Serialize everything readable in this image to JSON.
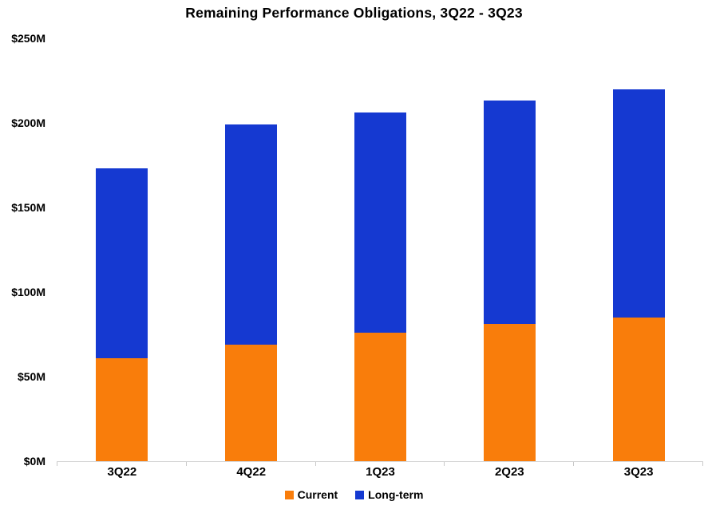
{
  "chart_data": {
    "type": "bar",
    "stacked": true,
    "title": "Remaining Performance Obligations, 3Q22 - 3Q23",
    "categories": [
      "3Q22",
      "4Q22",
      "1Q23",
      "2Q23",
      "3Q23"
    ],
    "series": [
      {
        "name": "Current",
        "color": "#F97D0B",
        "values": [
          61,
          69,
          76,
          81,
          85
        ]
      },
      {
        "name": "Long-term",
        "color": "#1539D1",
        "values": [
          112,
          130,
          130,
          132,
          135
        ]
      }
    ],
    "totals": [
      173,
      199,
      206,
      213,
      220
    ],
    "ylabel_format": "$NM",
    "ylim": [
      0,
      250
    ],
    "ytick_step": 50,
    "ytick_labels": [
      "$0M",
      "$50M",
      "$100M",
      "$150M",
      "$200M",
      "$250M"
    ],
    "grid": false,
    "legend_position": "bottom",
    "axis_color": "#d6d6d6",
    "text_color": "#000000"
  }
}
